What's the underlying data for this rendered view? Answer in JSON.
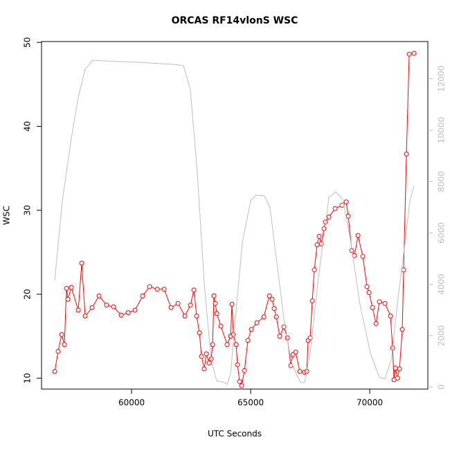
{
  "chart_data": {
    "type": "line",
    "title": "ORCAS RF14vlonS WSC",
    "x_label": "UTC Seconds",
    "y_label": "WSC",
    "xlim": [
      56220,
      72440
    ],
    "ylim": [
      8.7,
      50.1
    ],
    "y2lim": [
      -80,
      13450
    ],
    "xticks": [
      60000,
      65000,
      70000
    ],
    "yticks": [
      10,
      20,
      30,
      40,
      50
    ],
    "y2ticks": [
      0,
      2000,
      4000,
      6000,
      8000,
      10000,
      12000
    ],
    "series": [
      {
        "color": "#ff0000",
        "markers": true,
        "x": [
          56773,
          56918,
          57064,
          57180,
          57268,
          57326,
          57471,
          57762,
          57907,
          58052,
          58343,
          58634,
          58953,
          59244,
          59564,
          59855,
          60145,
          60465,
          60756,
          61076,
          61366,
          61657,
          61948,
          62238,
          62471,
          62616,
          62733,
          62849,
          62936,
          63052,
          63140,
          63256,
          63343,
          63401,
          63459,
          63517,
          63576,
          63750,
          64012,
          64157,
          64215,
          64273,
          64390,
          64448,
          64535,
          64622,
          64738,
          64884,
          65029,
          65262,
          65552,
          65785,
          65901,
          65989,
          66076,
          66221,
          66395,
          66541,
          66686,
          66773,
          66890,
          67064,
          67267,
          67355,
          67413,
          67500,
          67587,
          67674,
          67791,
          67878,
          67965,
          68081,
          68140,
          68285,
          68547,
          68837,
          69012,
          69099,
          69244,
          69360,
          69506,
          69709,
          69884,
          69971,
          70116,
          70262,
          70407,
          70640,
          70872,
          70959,
          71017,
          71076,
          71163,
          71250,
          71366,
          71424,
          71541,
          71657,
          71860
        ],
        "values": [
          10.8,
          13.2,
          15.2,
          14.0,
          20.7,
          19.4,
          20.8,
          18.1,
          23.7,
          17.4,
          18.4,
          19.8,
          18.7,
          18.5,
          17.5,
          17.8,
          18.1,
          19.8,
          20.9,
          20.6,
          20.6,
          18.4,
          18.9,
          17.4,
          18.7,
          20.5,
          17.4,
          15.4,
          12.6,
          11.1,
          12.9,
          11.8,
          12.3,
          14.0,
          19.8,
          18.9,
          17.7,
          16.2,
          14.0,
          15.0,
          18.8,
          15.2,
          14.0,
          11.6,
          9.6,
          9.1,
          10.9,
          14.5,
          15.8,
          16.6,
          17.3,
          19.8,
          19.4,
          18.3,
          17.3,
          15.0,
          16.1,
          14.8,
          11.5,
          12.8,
          13.1,
          10.8,
          10.7,
          10.8,
          14.5,
          14.8,
          19.2,
          22.9,
          25.9,
          26.9,
          26.0,
          27.8,
          28.6,
          29.2,
          30.2,
          30.6,
          31.0,
          29.3,
          25.2,
          24.6,
          27.0,
          24.5,
          20.9,
          20.2,
          18.4,
          16.5,
          19.1,
          18.9,
          17.4,
          13.6,
          9.8,
          11.2,
          10.0,
          11.1,
          15.8,
          22.9,
          36.7,
          48.6,
          48.7
        ]
      },
      {
        "color": "#bebebe",
        "axis": "y2",
        "markers": false,
        "x": [
          56773,
          57093,
          57471,
          57762,
          58052,
          58372,
          58837,
          60291,
          61744,
          62180,
          62471,
          62762,
          63052,
          63343,
          63576,
          63838,
          64012,
          64157,
          64361,
          64651,
          65000,
          65233,
          65582,
          65814,
          66105,
          66395,
          66686,
          66977,
          67122,
          67267,
          67500,
          67849,
          68285,
          68576,
          68866,
          69157,
          69593,
          70029,
          70407,
          70640,
          70901,
          71192,
          71483,
          71686,
          71860
        ],
        "values": [
          4150,
          7250,
          9680,
          11290,
          12370,
          12720,
          12700,
          12640,
          12560,
          12510,
          11560,
          8330,
          4020,
          1050,
          240,
          190,
          110,
          510,
          2670,
          5630,
          7250,
          7470,
          7440,
          6980,
          4820,
          2670,
          1050,
          380,
          160,
          190,
          1320,
          4290,
          7390,
          7600,
          7300,
          5900,
          3210,
          1320,
          380,
          320,
          1050,
          3480,
          5630,
          7250,
          7840
        ]
      }
    ]
  }
}
